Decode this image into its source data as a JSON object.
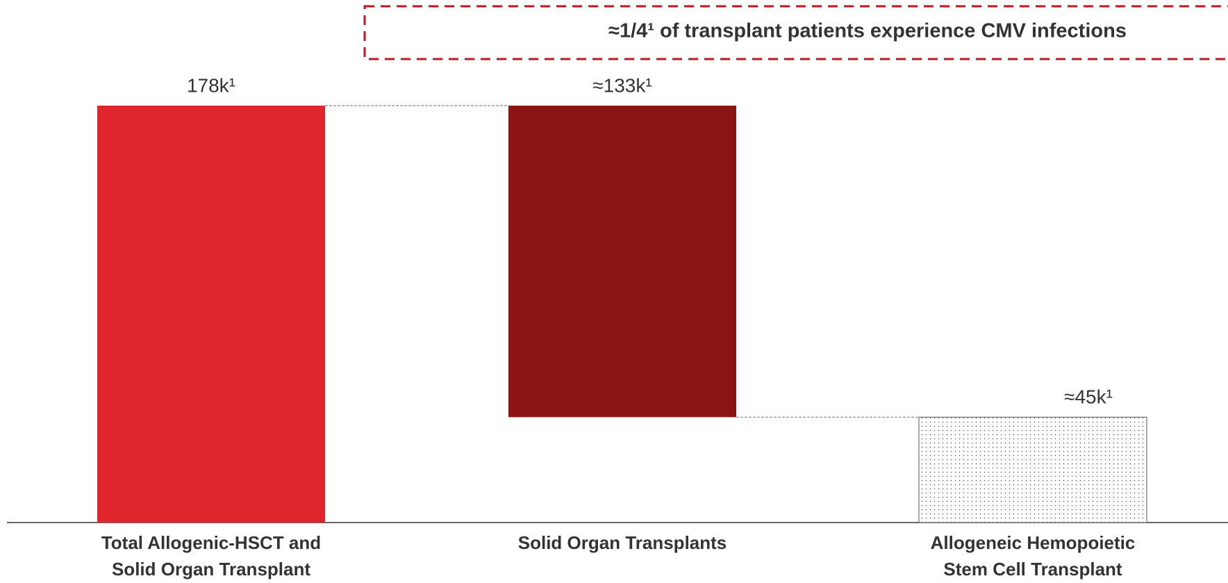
{
  "chart_data": {
    "type": "waterfall",
    "annotation": "≈1/4¹ of transplant patients experience CMV infections",
    "categories": [
      [
        "Total Allogenic-HSCT and",
        "Solid Organ Transplant"
      ],
      [
        "Solid Organ Transplants"
      ],
      [
        "Allogeneic Hemopoietic",
        "Stem Cell Transplant"
      ]
    ],
    "values": [
      178,
      133,
      45
    ],
    "value_labels": [
      "178k¹",
      "≈133k¹",
      "≈45k¹"
    ],
    "colors": [
      "#e1252c",
      "#8b1414",
      "dotted"
    ]
  }
}
